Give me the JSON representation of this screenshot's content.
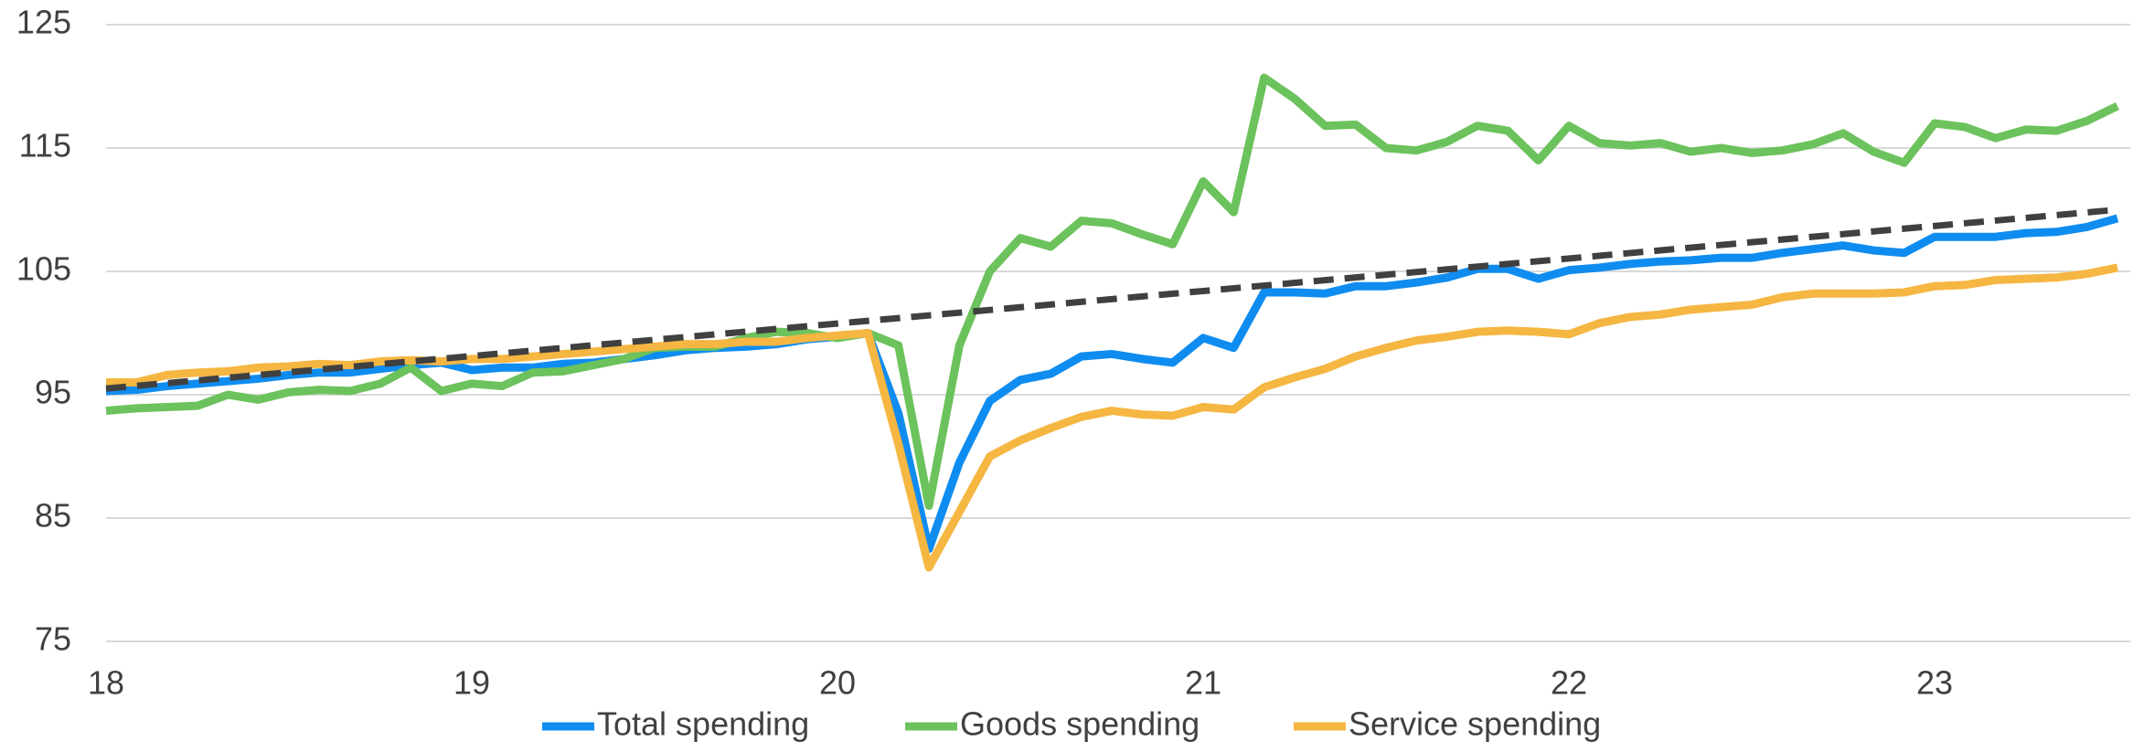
{
  "chart_data": {
    "type": "line",
    "categories": [
      "18",
      null,
      null,
      null,
      null,
      null,
      null,
      null,
      null,
      null,
      null,
      null,
      "19",
      null,
      null,
      null,
      null,
      null,
      null,
      null,
      null,
      null,
      null,
      null,
      "20",
      null,
      null,
      null,
      null,
      null,
      null,
      null,
      null,
      null,
      null,
      null,
      "21",
      null,
      null,
      null,
      null,
      null,
      null,
      null,
      null,
      null,
      null,
      null,
      "22",
      null,
      null,
      null,
      null,
      null,
      null,
      null,
      null,
      null,
      null,
      null,
      "23",
      null,
      null,
      null,
      null,
      null,
      null
    ],
    "series": [
      {
        "name": "Total spending",
        "color": "#0f8cf0",
        "values": [
          95.3,
          95.4,
          95.7,
          95.9,
          96.1,
          96.3,
          96.6,
          96.8,
          96.8,
          97.1,
          97.4,
          97.6,
          97.0,
          97.2,
          97.2,
          97.5,
          97.6,
          97.9,
          98.2,
          98.6,
          98.8,
          98.9,
          99.1,
          99.5,
          99.7,
          100.0,
          93.5,
          82.5,
          89.5,
          94.5,
          96.2,
          96.7,
          98.1,
          98.3,
          97.9,
          97.6,
          99.6,
          98.8,
          103.3,
          103.3,
          103.2,
          103.8,
          103.8,
          104.1,
          104.5,
          105.2,
          105.2,
          104.4,
          105.1,
          105.3,
          105.6,
          105.8,
          105.9,
          106.1,
          106.1,
          106.5,
          106.8,
          107.1,
          106.7,
          106.5,
          107.8,
          107.8,
          107.8,
          108.1,
          108.2,
          108.6,
          109.3
        ]
      },
      {
        "name": "Goods spending",
        "color": "#6cc25c",
        "values": [
          93.7,
          93.9,
          94.0,
          94.1,
          95.0,
          94.6,
          95.2,
          95.4,
          95.3,
          95.9,
          97.2,
          95.3,
          95.9,
          95.7,
          96.8,
          96.9,
          97.4,
          97.9,
          98.8,
          98.9,
          98.9,
          99.6,
          100.1,
          100.0,
          99.6,
          100.0,
          99.0,
          86.0,
          99.0,
          105.0,
          107.7,
          107.0,
          109.1,
          108.9,
          108.0,
          107.2,
          112.3,
          109.8,
          120.7,
          119.0,
          116.8,
          116.9,
          115.0,
          114.8,
          115.5,
          116.8,
          116.4,
          114.0,
          116.8,
          115.4,
          115.2,
          115.4,
          114.7,
          115.0,
          114.6,
          114.8,
          115.3,
          116.2,
          114.7,
          113.8,
          117.0,
          116.7,
          115.8,
          116.5,
          116.4,
          117.2,
          118.4
        ]
      },
      {
        "name": "Service spending",
        "color": "#f5b642",
        "values": [
          96.0,
          96.0,
          96.6,
          96.8,
          96.9,
          97.2,
          97.3,
          97.5,
          97.4,
          97.7,
          97.8,
          97.7,
          97.9,
          97.9,
          98.1,
          98.3,
          98.5,
          98.7,
          98.9,
          99.1,
          99.1,
          99.3,
          99.3,
          99.6,
          99.8,
          100.0,
          91.0,
          81.0,
          85.5,
          90.0,
          91.3,
          92.3,
          93.2,
          93.7,
          93.4,
          93.3,
          94.0,
          93.8,
          95.6,
          96.4,
          97.1,
          98.1,
          98.8,
          99.4,
          99.7,
          100.1,
          100.2,
          100.1,
          99.9,
          100.8,
          101.3,
          101.5,
          101.9,
          102.1,
          102.3,
          102.9,
          103.2,
          103.2,
          103.2,
          103.3,
          103.8,
          103.9,
          104.3,
          104.4,
          104.5,
          104.8,
          105.3
        ]
      }
    ],
    "trend_line": {
      "color": "#404040",
      "values": [
        95.5,
        110.0
      ]
    },
    "ylim": [
      75,
      125
    ],
    "yticks": [
      75,
      85,
      95,
      105,
      115,
      125
    ],
    "grid": true
  }
}
